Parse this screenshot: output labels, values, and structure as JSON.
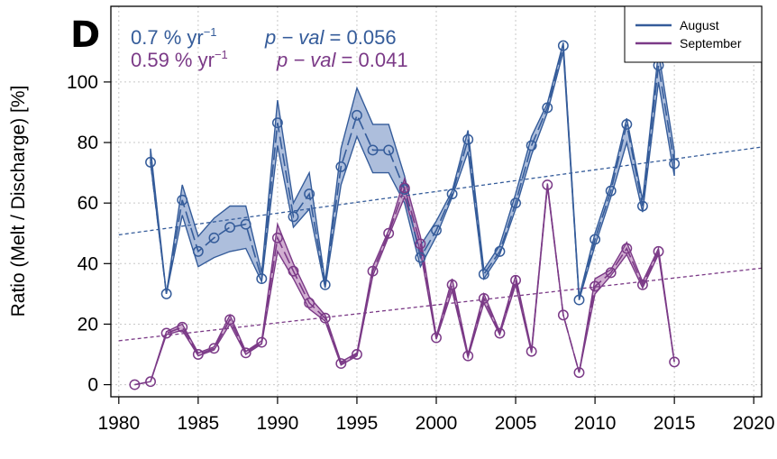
{
  "panel_label": "D",
  "chart_data": {
    "type": "line",
    "xlabel": "",
    "ylabel": "Ratio (Melt / Discharge) [%]",
    "xlim": [
      1979.5,
      2020.5
    ],
    "ylim": [
      -4,
      125
    ],
    "x_ticks": [
      1980,
      1985,
      1990,
      1995,
      2000,
      2005,
      2010,
      2015,
      2020
    ],
    "y_ticks": [
      0,
      20,
      40,
      60,
      80,
      100
    ],
    "grid": true,
    "legend_position": "top-right",
    "series": [
      {
        "name": "August",
        "color": "#355C9A",
        "fill": "#9FB3D6",
        "x": [
          1982,
          1983,
          1984,
          1985,
          1986,
          1987,
          1988,
          1989,
          1990,
          1991,
          1992,
          1993,
          1994,
          1995,
          1996,
          1997,
          1998,
          1999,
          2000,
          2001,
          2002,
          2003,
          2004,
          2005,
          2006,
          2007,
          2008,
          2009,
          2010,
          2011,
          2012,
          2013,
          2014,
          2015
        ],
        "values": [
          73.5,
          30,
          61,
          44,
          48.5,
          52,
          53,
          35,
          86.5,
          55.5,
          63,
          33,
          72,
          89,
          77.5,
          77.5,
          64.5,
          42,
          51,
          63,
          81,
          36.5,
          44,
          60,
          79,
          91.5,
          112,
          28,
          48,
          64,
          86,
          59,
          105.5,
          73
        ],
        "lower": [
          73.5,
          30,
          56,
          39,
          42,
          44,
          45,
          34,
          79,
          52,
          58,
          32,
          66,
          82,
          70,
          70,
          60,
          39,
          49,
          62,
          77,
          35,
          43,
          58,
          76,
          90,
          110,
          28,
          46,
          62,
          80,
          57,
          100,
          69
        ],
        "upper": [
          78,
          30,
          66,
          49,
          55,
          59,
          59,
          37,
          94,
          60,
          70,
          34,
          78,
          98,
          86,
          86,
          69,
          46,
          54,
          64,
          84,
          38,
          46,
          63,
          82,
          93,
          113,
          29,
          50,
          66,
          88,
          61,
          110,
          77
        ],
        "trend": {
          "x": [
            1980,
            2020.5
          ],
          "y": [
            49.5,
            78.5
          ]
        },
        "trend_rate": "0.7 % yr",
        "trend_rate_exp": "−1",
        "pval_label": "p − val",
        "pval_value": " = 0.056"
      },
      {
        "name": "September",
        "color": "#7B3A87",
        "fill": "#C9A0C9",
        "x": [
          1981,
          1982,
          1983,
          1984,
          1985,
          1986,
          1987,
          1988,
          1989,
          1990,
          1991,
          1992,
          1993,
          1994,
          1995,
          1996,
          1997,
          1998,
          1999,
          2000,
          2001,
          2002,
          2003,
          2004,
          2005,
          2006,
          2007,
          2008,
          2009,
          2010,
          2011,
          2012,
          2013,
          2014,
          2015
        ],
        "values": [
          0,
          1,
          17,
          19,
          10,
          12,
          21.5,
          10.5,
          14,
          48.5,
          37.5,
          27,
          22,
          7,
          10,
          37.5,
          50,
          65,
          46.5,
          15.5,
          33,
          9.5,
          28.5,
          17,
          34.5,
          11,
          66,
          23,
          4,
          32.5,
          37,
          45,
          33,
          44,
          7.5
        ],
        "lower": [
          0,
          1,
          16.5,
          18,
          9.5,
          11.5,
          20,
          10,
          13.5,
          44,
          35,
          25,
          21,
          6.5,
          9.5,
          36,
          49,
          62,
          44,
          15,
          31,
          9,
          27,
          16.5,
          33,
          10.5,
          65.5,
          23,
          4,
          30,
          36,
          43,
          32,
          43,
          7.5
        ],
        "upper": [
          0,
          1,
          17.5,
          20,
          10.5,
          12.5,
          23,
          11,
          14.5,
          53,
          40,
          29,
          23,
          7.5,
          10.5,
          39,
          51,
          68,
          49,
          16,
          35,
          10,
          30,
          17.5,
          36,
          11.5,
          66.5,
          23,
          4,
          35,
          38,
          47,
          34,
          45,
          7.5
        ],
        "trend": {
          "x": [
            1980,
            2020.5
          ],
          "y": [
            14.5,
            38.5
          ]
        },
        "trend_rate": "0.59 % yr",
        "trend_rate_exp": "−1",
        "pval_label": "p − val",
        "pval_value": " = 0.041"
      }
    ]
  }
}
